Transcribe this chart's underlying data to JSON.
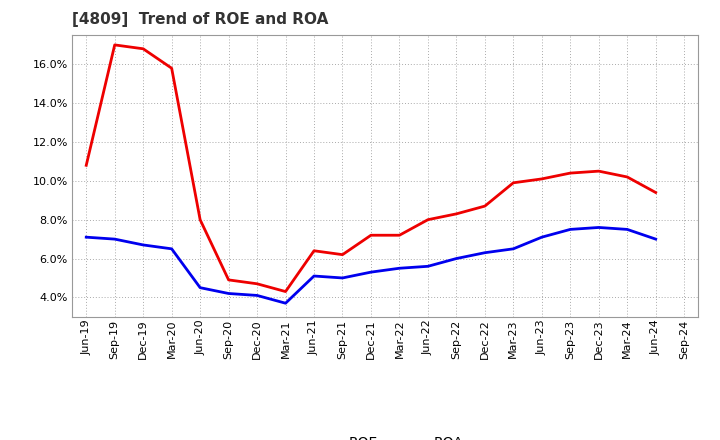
{
  "title": "[4809]  Trend of ROE and ROA",
  "title_fontsize": 11,
  "background_color": "#ffffff",
  "plot_background": "#ffffff",
  "grid_color": "#aaaaaa",
  "x_labels": [
    "Jun-19",
    "Sep-19",
    "Dec-19",
    "Mar-20",
    "Jun-20",
    "Sep-20",
    "Dec-20",
    "Mar-21",
    "Jun-21",
    "Sep-21",
    "Dec-21",
    "Mar-22",
    "Jun-22",
    "Sep-22",
    "Dec-22",
    "Mar-23",
    "Jun-23",
    "Sep-23",
    "Dec-23",
    "Mar-24",
    "Jun-24",
    "Sep-24"
  ],
  "roe": [
    10.8,
    17.0,
    16.8,
    15.8,
    8.0,
    4.9,
    4.7,
    4.3,
    6.4,
    6.2,
    7.2,
    7.2,
    8.0,
    8.3,
    8.7,
    9.9,
    10.1,
    10.4,
    10.5,
    10.2,
    9.4,
    null
  ],
  "roa": [
    7.1,
    7.0,
    6.7,
    6.5,
    4.5,
    4.2,
    4.1,
    3.7,
    5.1,
    5.0,
    5.3,
    5.5,
    5.6,
    6.0,
    6.3,
    6.5,
    7.1,
    7.5,
    7.6,
    7.5,
    7.0,
    null
  ],
  "roe_color": "#ee0000",
  "roa_color": "#0000ee",
  "line_width": 2.0,
  "ylim": [
    3.0,
    17.5
  ],
  "yticks": [
    4.0,
    6.0,
    8.0,
    10.0,
    12.0,
    14.0,
    16.0
  ],
  "legend_roe": "ROE",
  "legend_roa": "ROA",
  "tick_fontsize": 8,
  "ytick_fontsize": 8
}
